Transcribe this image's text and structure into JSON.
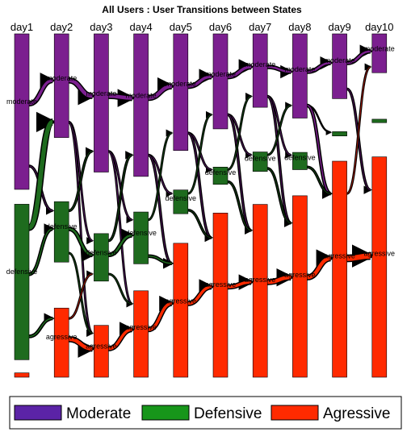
{
  "chart_data": {
    "type": "sankey",
    "title": "All Users : User Transitions between States",
    "days": [
      "day1",
      "day2",
      "day3",
      "day4",
      "day5",
      "day6",
      "day7",
      "day8",
      "day9",
      "day10"
    ],
    "states": [
      {
        "key": "moderate",
        "label": "moderate",
        "legend": "Moderate",
        "color": "#7b1f8f"
      },
      {
        "key": "defensive",
        "label": "defensive",
        "legend": "Defensive",
        "color": "#1e6b1e"
      },
      {
        "key": "agressive",
        "label": "agressive",
        "legend": "Agressive",
        "color": "#ff2a00"
      }
    ],
    "legend_colors": {
      "moderate": "#5b23a6",
      "defensive": "#17961a",
      "agressive": "#ff2a00"
    },
    "share_scale": [
      0,
      100
    ],
    "nodes": [
      {
        "moderate": 36.0,
        "defensive": 36.0,
        "agressive": 1.0
      },
      {
        "moderate": 24.0,
        "defensive": 14.0,
        "agressive": 16.0
      },
      {
        "moderate": 32.0,
        "defensive": 11.0,
        "agressive": 12.0
      },
      {
        "moderate": 33.0,
        "defensive": 12.0,
        "agressive": 20.0
      },
      {
        "moderate": 27.0,
        "defensive": 5.5,
        "agressive": 31.0
      },
      {
        "moderate": 22.0,
        "defensive": 4.0,
        "agressive": 38.0
      },
      {
        "moderate": 17.0,
        "defensive": 4.5,
        "agressive": 40.0
      },
      {
        "moderate": 19.5,
        "defensive": 4.0,
        "agressive": 42.0
      },
      {
        "moderate": 15.0,
        "defensive": 1.0,
        "agressive": 50.0
      },
      {
        "moderate": 9.0,
        "defensive": 0.8,
        "agressive": 51.0
      }
    ],
    "flows": [
      {
        "day": 0,
        "from": "moderate",
        "to": "moderate",
        "weight": 5
      },
      {
        "day": 0,
        "from": "moderate",
        "to": "defensive",
        "weight": 2
      },
      {
        "day": 0,
        "from": "defensive",
        "to": "moderate",
        "weight": 7
      },
      {
        "day": 0,
        "from": "defensive",
        "to": "defensive",
        "weight": 3
      },
      {
        "day": 0,
        "from": "defensive",
        "to": "agressive",
        "weight": 3
      },
      {
        "day": 1,
        "from": "moderate",
        "to": "moderate",
        "weight": 6
      },
      {
        "day": 1,
        "from": "moderate",
        "to": "defensive",
        "weight": 1.5
      },
      {
        "day": 1,
        "from": "moderate",
        "to": "agressive",
        "weight": 1.5
      },
      {
        "day": 1,
        "from": "defensive",
        "to": "moderate",
        "weight": 2
      },
      {
        "day": 1,
        "from": "defensive",
        "to": "defensive",
        "weight": 4
      },
      {
        "day": 1,
        "from": "defensive",
        "to": "agressive",
        "weight": 1.5
      },
      {
        "day": 1,
        "from": "agressive",
        "to": "defensive",
        "weight": 1.5
      },
      {
        "day": 1,
        "from": "agressive",
        "to": "agressive",
        "weight": 6
      },
      {
        "day": 2,
        "from": "moderate",
        "to": "moderate",
        "weight": 6
      },
      {
        "day": 2,
        "from": "moderate",
        "to": "defensive",
        "weight": 1.5
      },
      {
        "day": 2,
        "from": "moderate",
        "to": "agressive",
        "weight": 1.5
      },
      {
        "day": 2,
        "from": "defensive",
        "to": "moderate",
        "weight": 2
      },
      {
        "day": 2,
        "from": "defensive",
        "to": "defensive",
        "weight": 4
      },
      {
        "day": 2,
        "from": "defensive",
        "to": "agressive",
        "weight": 1.5
      },
      {
        "day": 2,
        "from": "agressive",
        "to": "agressive",
        "weight": 5
      },
      {
        "day": 3,
        "from": "moderate",
        "to": "moderate",
        "weight": 6
      },
      {
        "day": 3,
        "from": "moderate",
        "to": "defensive",
        "weight": 1.5
      },
      {
        "day": 3,
        "from": "moderate",
        "to": "agressive",
        "weight": 2
      },
      {
        "day": 3,
        "from": "defensive",
        "to": "moderate",
        "weight": 1.5
      },
      {
        "day": 3,
        "from": "defensive",
        "to": "agressive",
        "weight": 3
      },
      {
        "day": 3,
        "from": "agressive",
        "to": "agressive",
        "weight": 5
      },
      {
        "day": 4,
        "from": "moderate",
        "to": "moderate",
        "weight": 5
      },
      {
        "day": 4,
        "from": "moderate",
        "to": "defensive",
        "weight": 1.5
      },
      {
        "day": 4,
        "from": "moderate",
        "to": "agressive",
        "weight": 2
      },
      {
        "day": 4,
        "from": "defensive",
        "to": "moderate",
        "weight": 1.5
      },
      {
        "day": 4,
        "from": "defensive",
        "to": "agressive",
        "weight": 2
      },
      {
        "day": 4,
        "from": "agressive",
        "to": "agressive",
        "weight": 5
      },
      {
        "day": 5,
        "from": "moderate",
        "to": "moderate",
        "weight": 5
      },
      {
        "day": 5,
        "from": "moderate",
        "to": "defensive",
        "weight": 1.5
      },
      {
        "day": 5,
        "from": "moderate",
        "to": "agressive",
        "weight": 2
      },
      {
        "day": 5,
        "from": "defensive",
        "to": "moderate",
        "weight": 1.5
      },
      {
        "day": 5,
        "from": "defensive",
        "to": "agressive",
        "weight": 2
      },
      {
        "day": 5,
        "from": "agressive",
        "to": "agressive",
        "weight": 5
      },
      {
        "day": 6,
        "from": "moderate",
        "to": "moderate",
        "weight": 4
      },
      {
        "day": 6,
        "from": "moderate",
        "to": "defensive",
        "weight": 1.5
      },
      {
        "day": 6,
        "from": "moderate",
        "to": "agressive",
        "weight": 2
      },
      {
        "day": 6,
        "from": "defensive",
        "to": "moderate",
        "weight": 1.5
      },
      {
        "day": 6,
        "from": "defensive",
        "to": "agressive",
        "weight": 2
      },
      {
        "day": 6,
        "from": "agressive",
        "to": "agressive",
        "weight": 6
      },
      {
        "day": 7,
        "from": "moderate",
        "to": "moderate",
        "weight": 4
      },
      {
        "day": 7,
        "from": "moderate",
        "to": "defensive",
        "weight": 1
      },
      {
        "day": 7,
        "from": "moderate",
        "to": "agressive",
        "weight": 3
      },
      {
        "day": 7,
        "from": "defensive",
        "to": "agressive",
        "weight": 2
      },
      {
        "day": 7,
        "from": "agressive",
        "to": "agressive",
        "weight": 6
      },
      {
        "day": 8,
        "from": "moderate",
        "to": "moderate",
        "weight": 4
      },
      {
        "day": 8,
        "from": "moderate",
        "to": "agressive",
        "weight": 2
      },
      {
        "day": 8,
        "from": "agressive",
        "to": "moderate",
        "weight": 1.5
      },
      {
        "day": 8,
        "from": "agressive",
        "to": "agressive",
        "weight": 8
      }
    ]
  }
}
